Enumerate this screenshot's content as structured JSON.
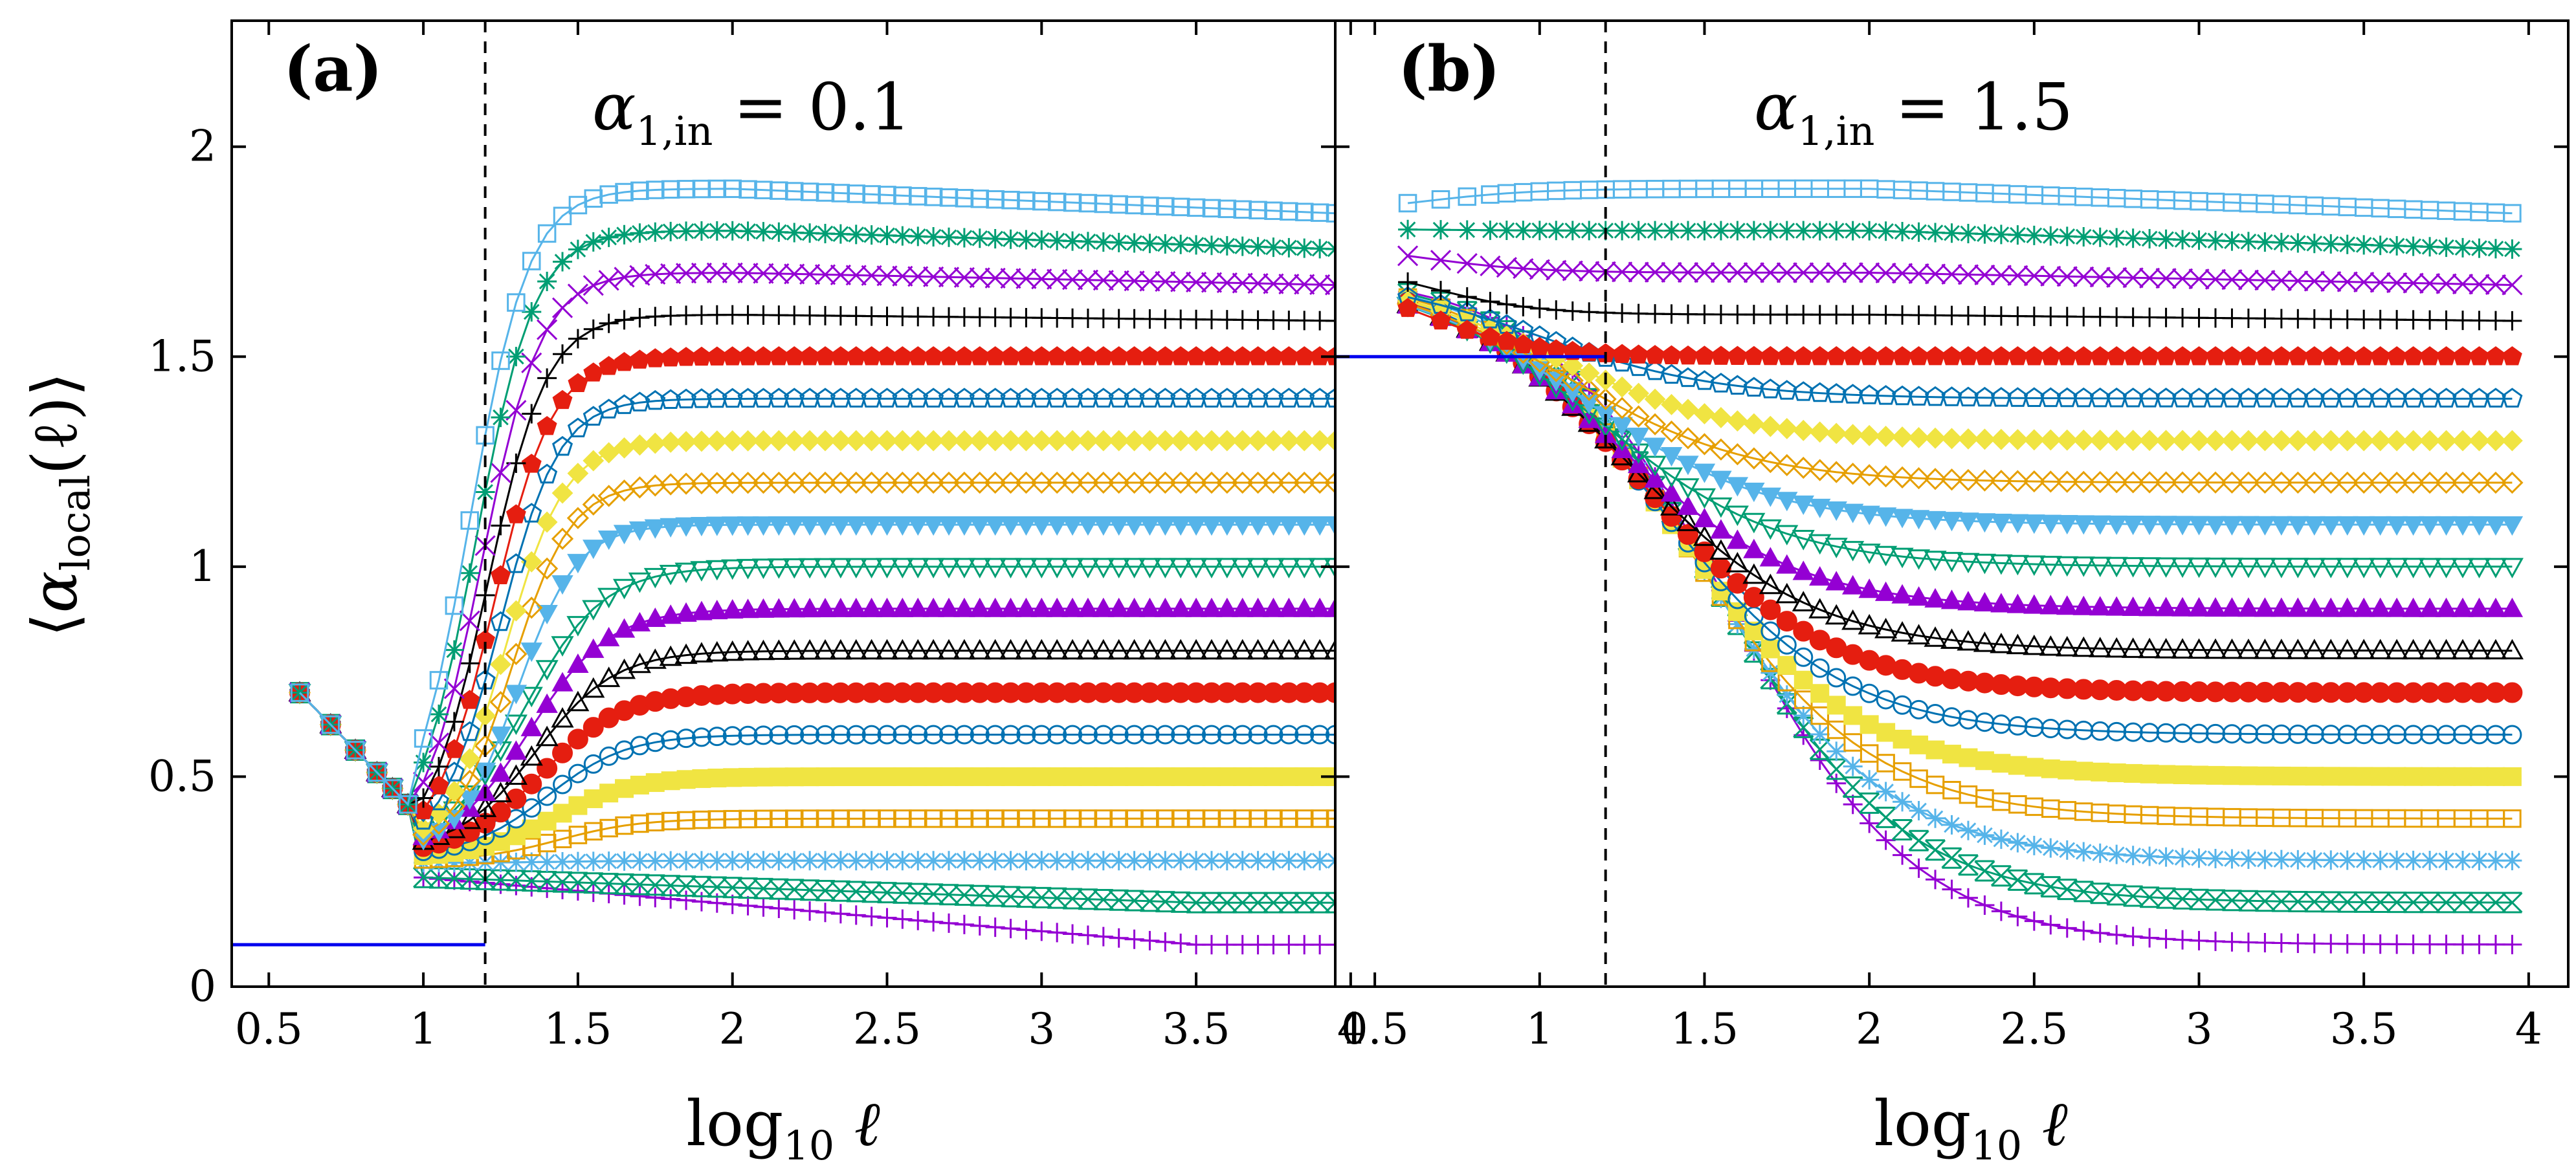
{
  "chart_data": {
    "type": "line",
    "ylabel_parts": {
      "open": "⟨",
      "alpha": "α",
      "sub": "local",
      "arg": "(ℓ)",
      "close": "⟩"
    },
    "xlabel_parts": {
      "log": "log",
      "sub": "10",
      "var": " ℓ"
    },
    "xlim": [
      0.38,
      3.95
    ],
    "ylim": [
      0,
      2.3
    ],
    "x_ticks": [
      0.5,
      1,
      1.5,
      2,
      2.5,
      3,
      3.5,
      4
    ],
    "x_tick_labels": [
      "0.5",
      "1",
      "1.5",
      "2",
      "2.5",
      "3",
      "3.5",
      "4"
    ],
    "y_ticks": [
      0,
      0.5,
      1,
      1.5,
      2
    ],
    "y_tick_labels": [
      "0",
      "0.5",
      "1",
      "1.5",
      "2"
    ],
    "vline_x": 1.2,
    "colors": {
      "purple": "#9400d3",
      "green": "#009e73",
      "lightblue": "#56b4e9",
      "orange": "#e69f00",
      "yellow": "#f0e442",
      "blue": "#0072b2",
      "red": "#e51e10",
      "black": "#000000",
      "line_blue": "#0000ee"
    },
    "series": [
      {
        "target": 0.1,
        "color": "purple",
        "marker": "plus"
      },
      {
        "target": 0.2,
        "color": "green",
        "marker": "xsq"
      },
      {
        "target": 0.3,
        "color": "lightblue",
        "marker": "star"
      },
      {
        "target": 0.4,
        "color": "orange",
        "marker": "sq-open"
      },
      {
        "target": 0.5,
        "color": "yellow",
        "marker": "sq-filled"
      },
      {
        "target": 0.6,
        "color": "blue",
        "marker": "circ-open"
      },
      {
        "target": 0.7,
        "color": "red",
        "marker": "circ-filled"
      },
      {
        "target": 0.8,
        "color": "black",
        "marker": "tri-open"
      },
      {
        "target": 0.9,
        "color": "purple",
        "marker": "tri-filled"
      },
      {
        "target": 1.0,
        "color": "green",
        "marker": "tridown-open"
      },
      {
        "target": 1.1,
        "color": "lightblue",
        "marker": "tridown-filled"
      },
      {
        "target": 1.2,
        "color": "orange",
        "marker": "diamond-open"
      },
      {
        "target": 1.3,
        "color": "yellow",
        "marker": "diamond-filled"
      },
      {
        "target": 1.4,
        "color": "blue",
        "marker": "pent-open"
      },
      {
        "target": 1.5,
        "color": "red",
        "marker": "pent-filled"
      },
      {
        "target": 1.6,
        "color": "black",
        "marker": "plus"
      },
      {
        "target": 1.7,
        "color": "purple",
        "marker": "cross"
      },
      {
        "target": 1.8,
        "color": "green",
        "marker": "star"
      },
      {
        "target": 1.9,
        "color": "lightblue",
        "marker": "sq-open"
      }
    ],
    "panels": [
      {
        "tag": "(a)",
        "param_alpha": "α",
        "param_sub": "1,in",
        "param_rest": " = 0.1",
        "alpha_in": 0.1
      },
      {
        "tag": "(b)",
        "param_alpha": "α",
        "param_sub": "1,in",
        "param_rest": " = 1.5",
        "alpha_in": 1.5
      }
    ]
  }
}
